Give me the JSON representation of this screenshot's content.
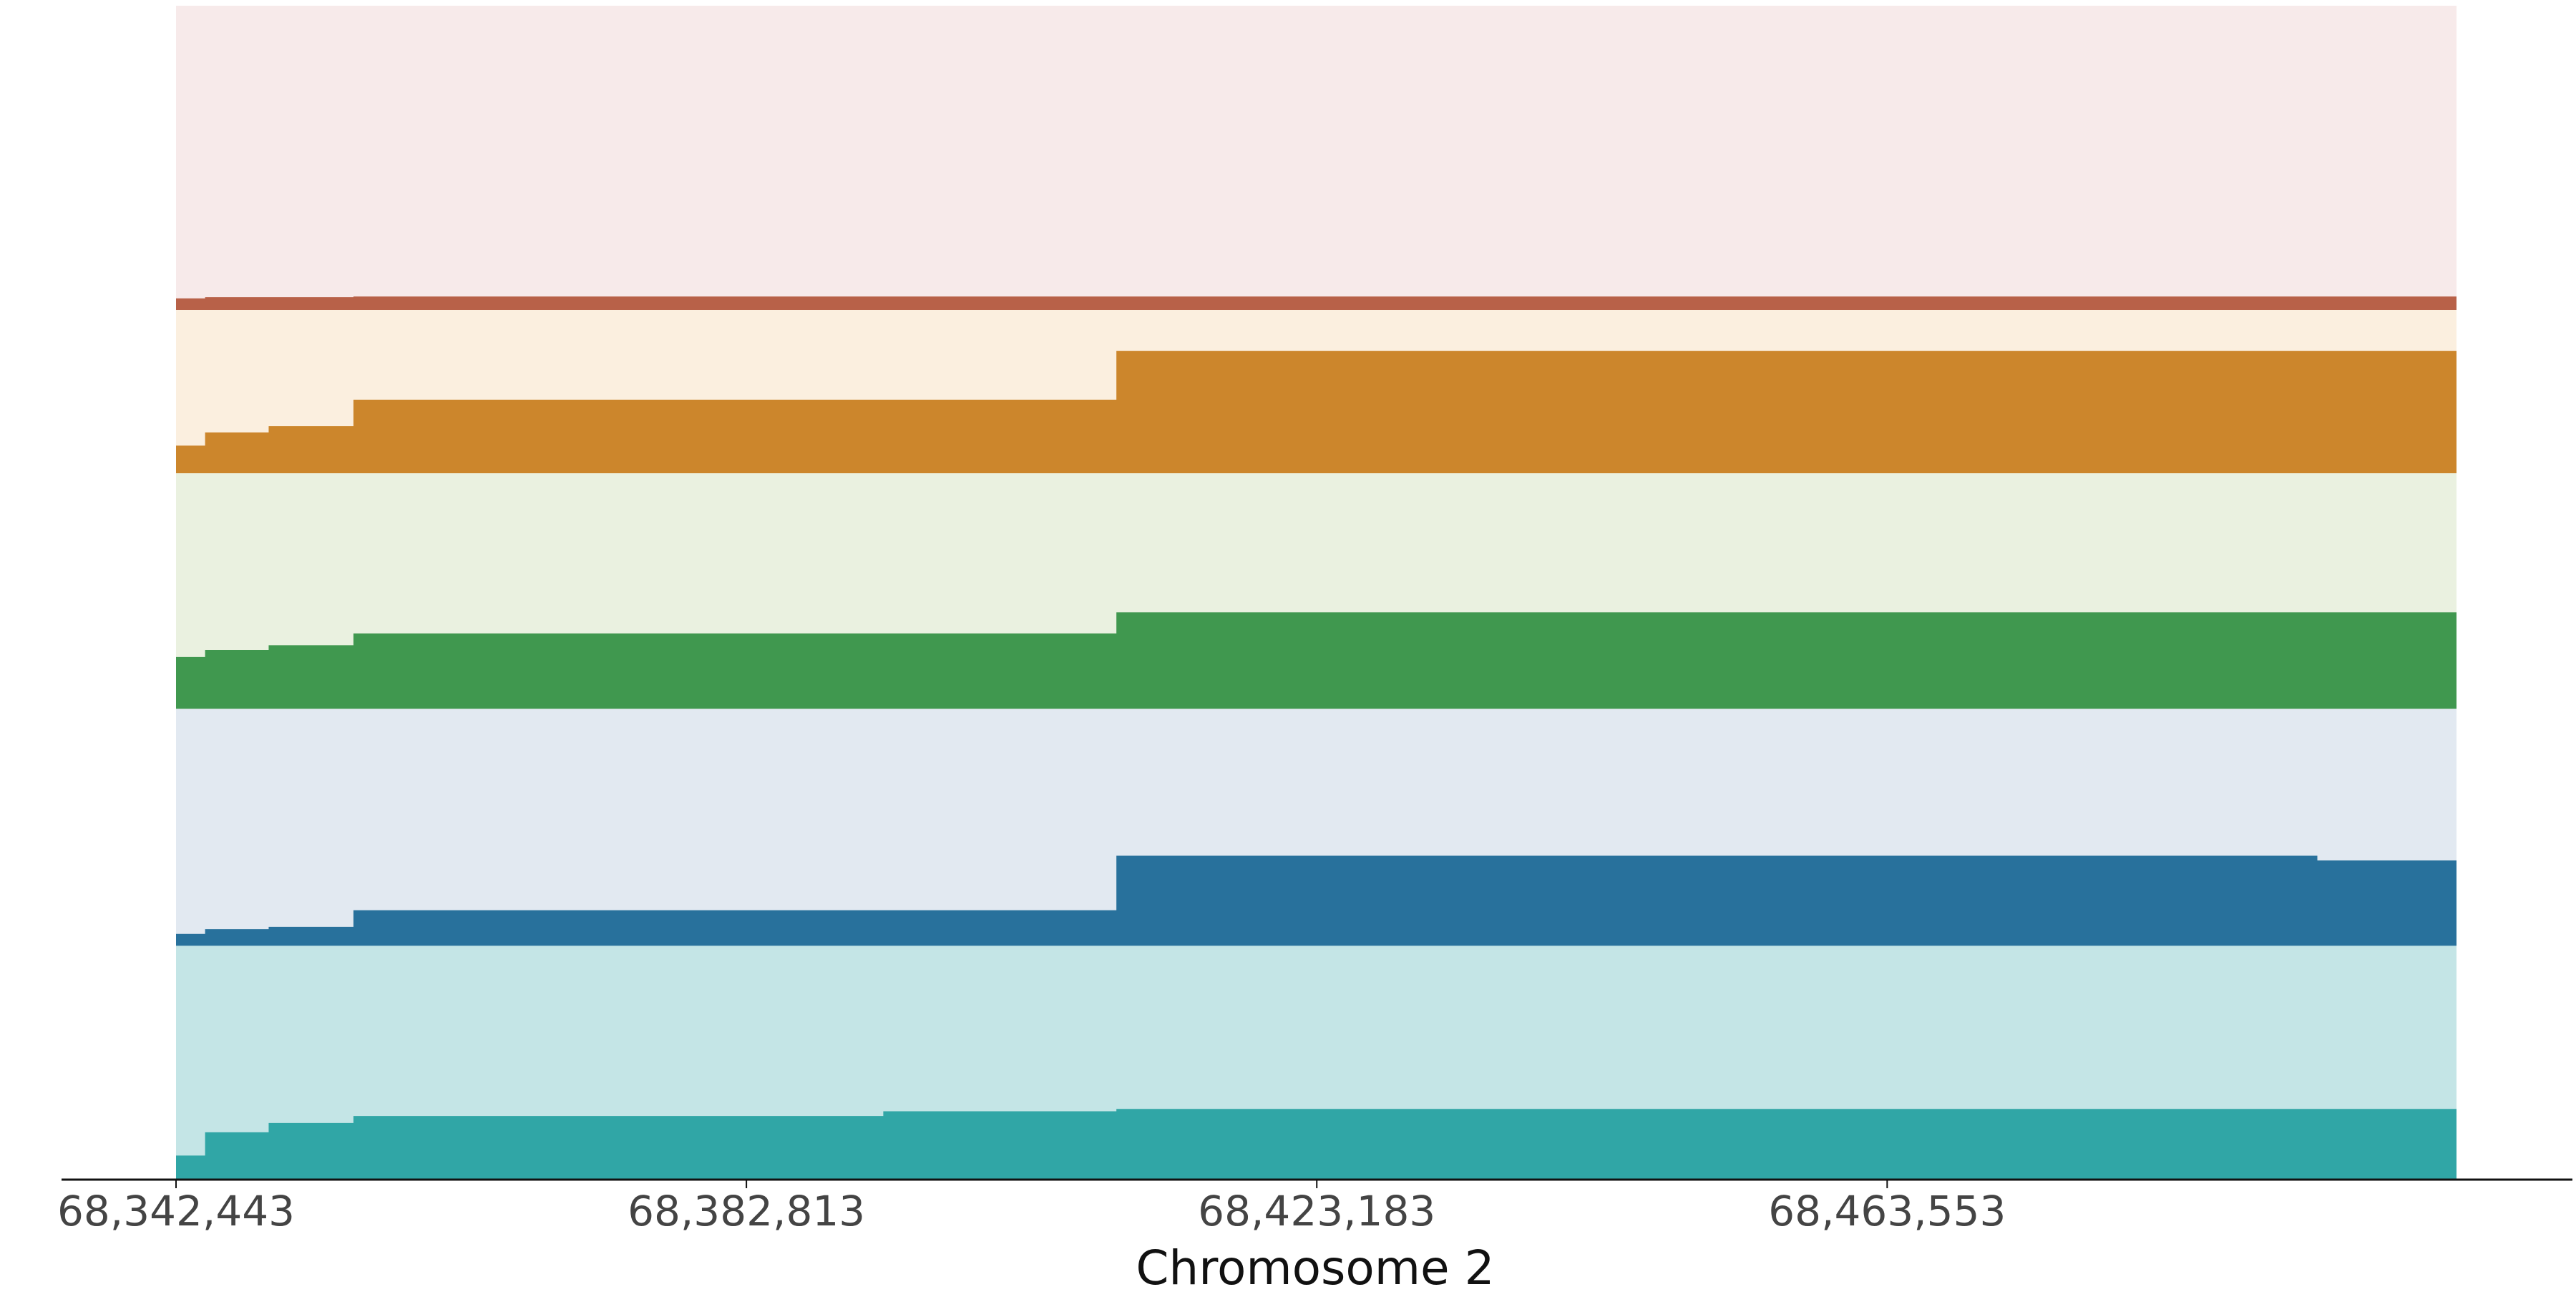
{
  "chart_data": {
    "type": "area",
    "title": "",
    "xlabel": "Chromosome 2",
    "ylabel": "",
    "x_ticks": [
      68342443,
      68382813,
      68423183,
      68463553
    ],
    "x_tick_labels": [
      "68,342,443",
      "68,382,813",
      "68,423,183",
      "68,463,553"
    ],
    "xlim": [
      68342443,
      68503850
    ],
    "ylim": [
      0,
      1
    ],
    "grid": false,
    "legend": "none",
    "tracks": [
      {
        "color": "#b86148",
        "background": "#f7eaea",
        "band": [
          0.7407,
          1.0
        ],
        "x": [
          68342443,
          68344500,
          68355000,
          68503850
        ],
        "values": [
          0.038,
          0.042,
          0.044,
          0.044
        ]
      },
      {
        "color": "#cc862c",
        "background": "#fbefdf",
        "band": [
          0.6014,
          0.7407
        ],
        "x": [
          68342443,
          68344500,
          68349000,
          68355000,
          68392500,
          68409000,
          68475000,
          68503850
        ],
        "values": [
          0.17,
          0.25,
          0.29,
          0.45,
          0.45,
          0.75,
          0.75,
          0.72
        ]
      },
      {
        "color": "#40984f",
        "background": "#eaf1e0",
        "band": [
          0.4007,
          0.6014
        ],
        "x": [
          68342443,
          68344500,
          68349000,
          68355000,
          68392500,
          68409000,
          68475000,
          68503850
        ],
        "values": [
          0.22,
          0.25,
          0.27,
          0.32,
          0.32,
          0.41,
          0.41,
          0.36
        ]
      },
      {
        "color": "#28719c",
        "background": "#e2e9f1",
        "band": [
          0.1987,
          0.4007
        ],
        "x": [
          68342443,
          68344500,
          68349000,
          68355000,
          68392500,
          68409000,
          68475000,
          68494000,
          68503850
        ],
        "values": [
          0.05,
          0.07,
          0.08,
          0.15,
          0.15,
          0.38,
          0.38,
          0.36,
          0.35
        ]
      },
      {
        "color": "#30a6a6",
        "background": "#c4e5e6",
        "band": [
          0.0,
          0.1987
        ],
        "x": [
          68342443,
          68344500,
          68349000,
          68355000,
          68392500,
          68409000,
          68475000,
          68503850
        ],
        "values": [
          0.1,
          0.2,
          0.24,
          0.27,
          0.29,
          0.3,
          0.3,
          0.28
        ]
      }
    ]
  }
}
